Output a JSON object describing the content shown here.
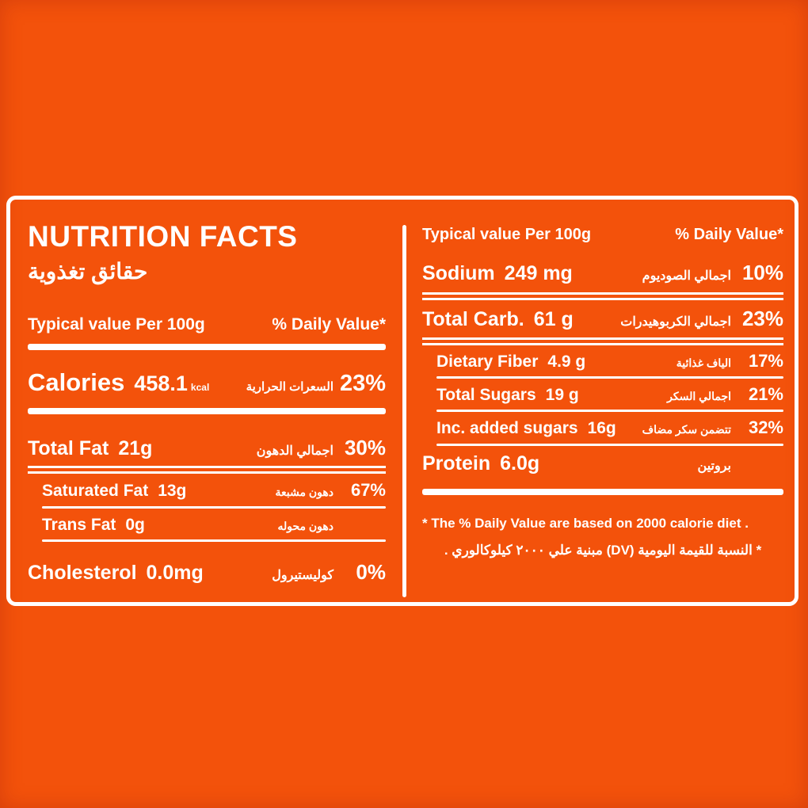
{
  "colors": {
    "background": "#f3520b",
    "text": "#ffffff"
  },
  "label": {
    "title_en": "NUTRITION FACTS",
    "title_ar": "حقائق تغذوية",
    "header_left": "Typical value Per 100g",
    "header_right": "% Daily Value*",
    "left_rows": [
      {
        "key": "calories",
        "label": "Calories",
        "amount": "458.1",
        "unit": "kcal",
        "ar": "السعرات الحرارية",
        "dv": "23%",
        "cls": "xl",
        "sep": "thick"
      },
      {
        "key": "total-fat",
        "label": "Total Fat",
        "amount": "21g",
        "ar": "اجمالي الدهون",
        "dv": "30%",
        "cls": "lg",
        "sep": "double"
      },
      {
        "key": "saturated-fat",
        "label": "Saturated Fat",
        "amount": "13g",
        "ar": "دهون مشبعة",
        "dv": "67%",
        "cls": "md sub",
        "sep": "thin"
      },
      {
        "key": "trans-fat",
        "label": "Trans Fat",
        "amount": "0g",
        "ar": "دهون محوله",
        "dv": "",
        "cls": "md sub",
        "sep": "thin"
      },
      {
        "key": "cholesterol",
        "label": "Cholesterol",
        "amount": "0.0mg",
        "ar": "كوليستيرول",
        "dv": "0%",
        "cls": "lg",
        "sep": "none"
      }
    ],
    "right_rows": [
      {
        "key": "sodium",
        "label": "Sodium",
        "amount": "249 mg",
        "ar": "اجمالي الصوديوم",
        "dv": "10%",
        "cls": "lg",
        "sep": "double"
      },
      {
        "key": "total-carb",
        "label": "Total Carb.",
        "amount": "61 g",
        "ar": "اجمالي الكربوهيدرات",
        "dv": "23%",
        "cls": "lg",
        "sep": "double"
      },
      {
        "key": "dietary-fiber",
        "label": "Dietary Fiber",
        "amount": "4.9 g",
        "ar": "الياف غذائية",
        "dv": "17%",
        "cls": "md sub",
        "sep": "thin"
      },
      {
        "key": "total-sugars",
        "label": "Total Sugars",
        "amount": "19 g",
        "ar": "اجمالي السكر",
        "dv": "21%",
        "cls": "md sub",
        "sep": "thin"
      },
      {
        "key": "added-sugars",
        "label": "Inc. added sugars",
        "amount": "16g",
        "ar": "تتضمن سكر مضاف",
        "dv": "32%",
        "cls": "md sub",
        "sep": "thin"
      },
      {
        "key": "protein",
        "label": "Protein",
        "amount": "6.0g",
        "ar": "بروتين",
        "dv": "",
        "cls": "lg",
        "sep": "thick"
      }
    ],
    "footnote_en": "* The % Daily Value are based on 2000 calorie diet .",
    "footnote_ar": "* النسبة للقيمة اليومية (DV) مبنية علي ٢٠٠٠ كيلوكالوري ."
  }
}
